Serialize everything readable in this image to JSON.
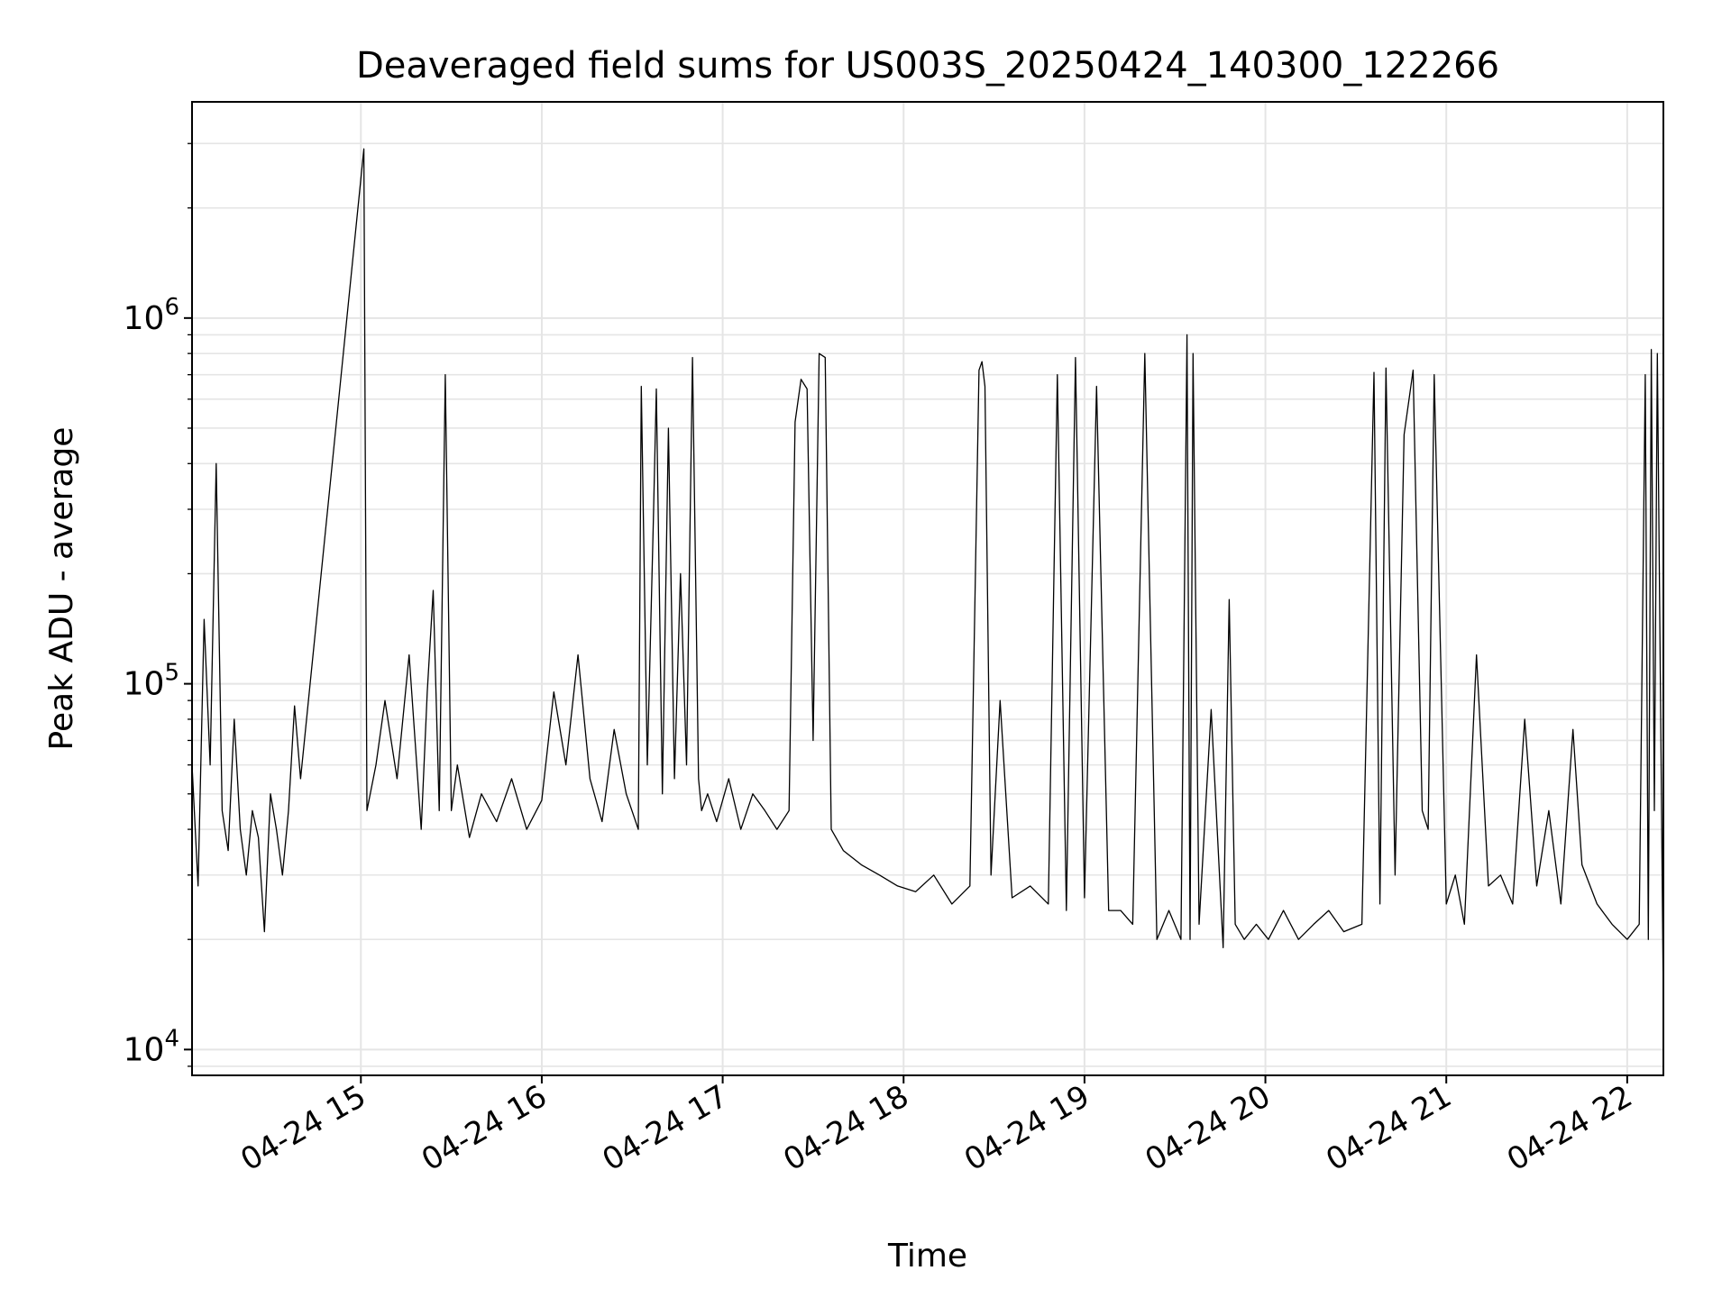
{
  "chart_data": {
    "type": "line",
    "title": "Deaveraged field sums for US003S_20250424_140300_122266",
    "xlabel": "Time",
    "ylabel": "Peak ADU - average",
    "yscale": "log",
    "ylim": [
      8500,
      3900000
    ],
    "xlim": [
      "2025-04-24 14:04",
      "2025-04-24 22:12"
    ],
    "grid": true,
    "colors": {
      "line": "#000000",
      "grid": "#e5e5e5",
      "axis": "#000000"
    },
    "x_tick_labels": [
      {
        "at": "2025-04-24 15:00",
        "label": "04-24 15"
      },
      {
        "at": "2025-04-24 16:00",
        "label": "04-24 16"
      },
      {
        "at": "2025-04-24 17:00",
        "label": "04-24 17"
      },
      {
        "at": "2025-04-24 18:00",
        "label": "04-24 18"
      },
      {
        "at": "2025-04-24 19:00",
        "label": "04-24 19"
      },
      {
        "at": "2025-04-24 20:00",
        "label": "04-24 20"
      },
      {
        "at": "2025-04-24 21:00",
        "label": "04-24 21"
      },
      {
        "at": "2025-04-24 22:00",
        "label": "04-24 22"
      }
    ],
    "y_tick_labels": [
      {
        "at": 10000,
        "base": "10",
        "exp": "4"
      },
      {
        "at": 100000,
        "base": "10",
        "exp": "5"
      },
      {
        "at": 1000000,
        "base": "10",
        "exp": "6"
      }
    ],
    "series": [
      {
        "x": [
          "2025-04-24 14:04",
          "2025-04-24 14:06",
          "2025-04-24 14:08",
          "2025-04-24 14:10",
          "2025-04-24 14:12",
          "2025-04-24 14:14",
          "2025-04-24 14:16",
          "2025-04-24 14:18",
          "2025-04-24 14:20",
          "2025-04-24 14:22",
          "2025-04-24 14:24",
          "2025-04-24 14:26",
          "2025-04-24 14:28",
          "2025-04-24 14:30",
          "2025-04-24 14:32",
          "2025-04-24 14:34",
          "2025-04-24 14:36",
          "2025-04-24 14:38",
          "2025-04-24 14:40",
          "2025-04-24 15:01",
          "2025-04-24 15:02",
          "2025-04-24 15:05",
          "2025-04-24 15:08",
          "2025-04-24 15:12",
          "2025-04-24 15:16",
          "2025-04-24 15:20",
          "2025-04-24 15:22",
          "2025-04-24 15:24",
          "2025-04-24 15:26",
          "2025-04-24 15:28",
          "2025-04-24 15:30",
          "2025-04-24 15:32",
          "2025-04-24 15:36",
          "2025-04-24 15:40",
          "2025-04-24 15:45",
          "2025-04-24 15:50",
          "2025-04-24 15:55",
          "2025-04-24 16:00",
          "2025-04-24 16:04",
          "2025-04-24 16:08",
          "2025-04-24 16:12",
          "2025-04-24 16:16",
          "2025-04-24 16:20",
          "2025-04-24 16:24",
          "2025-04-24 16:28",
          "2025-04-24 16:32",
          "2025-04-24 16:33",
          "2025-04-24 16:35",
          "2025-04-24 16:37",
          "2025-04-24 16:38",
          "2025-04-24 16:40",
          "2025-04-24 16:42",
          "2025-04-24 16:44",
          "2025-04-24 16:46",
          "2025-04-24 16:48",
          "2025-04-24 16:50",
          "2025-04-24 16:52",
          "2025-04-24 16:53",
          "2025-04-24 16:55",
          "2025-04-24 16:58",
          "2025-04-24 17:02",
          "2025-04-24 17:06",
          "2025-04-24 17:10",
          "2025-04-24 17:14",
          "2025-04-24 17:18",
          "2025-04-24 17:22",
          "2025-04-24 17:24",
          "2025-04-24 17:26",
          "2025-04-24 17:28",
          "2025-04-24 17:30",
          "2025-04-24 17:32",
          "2025-04-24 17:34",
          "2025-04-24 17:36",
          "2025-04-24 17:40",
          "2025-04-24 17:46",
          "2025-04-24 17:52",
          "2025-04-24 17:58",
          "2025-04-24 18:04",
          "2025-04-24 18:10",
          "2025-04-24 18:16",
          "2025-04-24 18:22",
          "2025-04-24 18:25",
          "2025-04-24 18:26",
          "2025-04-24 18:27",
          "2025-04-24 18:29",
          "2025-04-24 18:32",
          "2025-04-24 18:36",
          "2025-04-24 18:42",
          "2025-04-24 18:48",
          "2025-04-24 18:51",
          "2025-04-24 18:54",
          "2025-04-24 18:57",
          "2025-04-24 19:00",
          "2025-04-24 19:04",
          "2025-04-24 19:08",
          "2025-04-24 19:12",
          "2025-04-24 19:16",
          "2025-04-24 19:20",
          "2025-04-24 19:24",
          "2025-04-24 19:28",
          "2025-04-24 19:32",
          "2025-04-24 19:34",
          "2025-04-24 19:35",
          "2025-04-24 19:36",
          "2025-04-24 19:38",
          "2025-04-24 19:42",
          "2025-04-24 19:46",
          "2025-04-24 19:48",
          "2025-04-24 19:50",
          "2025-04-24 19:53",
          "2025-04-24 19:57",
          "2025-04-24 20:01",
          "2025-04-24 20:06",
          "2025-04-24 20:11",
          "2025-04-24 20:16",
          "2025-04-24 20:21",
          "2025-04-24 20:26",
          "2025-04-24 20:32",
          "2025-04-24 20:36",
          "2025-04-24 20:38",
          "2025-04-24 20:40",
          "2025-04-24 20:43",
          "2025-04-24 20:46",
          "2025-04-24 20:49",
          "2025-04-24 20:52",
          "2025-04-24 20:54",
          "2025-04-24 20:56",
          "2025-04-24 21:00",
          "2025-04-24 21:03",
          "2025-04-24 21:06",
          "2025-04-24 21:10",
          "2025-04-24 21:14",
          "2025-04-24 21:18",
          "2025-04-24 21:22",
          "2025-04-24 21:26",
          "2025-04-24 21:30",
          "2025-04-24 21:34",
          "2025-04-24 21:38",
          "2025-04-24 21:42",
          "2025-04-24 21:45",
          "2025-04-24 21:50",
          "2025-04-24 21:55",
          "2025-04-24 22:00",
          "2025-04-24 22:04",
          "2025-04-24 22:06",
          "2025-04-24 22:07",
          "2025-04-24 22:08",
          "2025-04-24 22:09",
          "2025-04-24 22:10",
          "2025-04-24 22:12"
        ],
        "y": [
          60000,
          28000,
          150000,
          60000,
          400000,
          45000,
          35000,
          80000,
          40000,
          30000,
          45000,
          38000,
          21000,
          50000,
          40000,
          30000,
          45000,
          87000,
          55000,
          2900000,
          45000,
          60000,
          90000,
          55000,
          120000,
          40000,
          95000,
          180000,
          45000,
          700000,
          45000,
          60000,
          38000,
          50000,
          42000,
          55000,
          40000,
          48000,
          95000,
          60000,
          120000,
          55000,
          42000,
          75000,
          50000,
          40000,
          650000,
          60000,
          280000,
          640000,
          50000,
          500000,
          55000,
          200000,
          60000,
          780000,
          55000,
          45000,
          50000,
          42000,
          55000,
          40000,
          50000,
          45000,
          40000,
          45000,
          520000,
          680000,
          640000,
          70000,
          800000,
          780000,
          40000,
          35000,
          32000,
          30000,
          28000,
          27000,
          30000,
          25000,
          28000,
          720000,
          760000,
          650000,
          30000,
          90000,
          26000,
          28000,
          25000,
          700000,
          24000,
          780000,
          26000,
          650000,
          24000,
          24000,
          22000,
          800000,
          20000,
          24000,
          20000,
          900000,
          20000,
          800000,
          22000,
          85000,
          19000,
          170000,
          22000,
          20000,
          22000,
          20000,
          24000,
          20000,
          22000,
          24000,
          21000,
          22000,
          710000,
          25000,
          730000,
          30000,
          480000,
          720000,
          45000,
          40000,
          700000,
          25000,
          30000,
          22000,
          120000,
          28000,
          30000,
          25000,
          80000,
          28000,
          45000,
          25000,
          75000,
          32000,
          25000,
          22000,
          20000,
          22000,
          700000,
          20000,
          820000,
          45000,
          800000,
          13000
        ]
      }
    ]
  }
}
